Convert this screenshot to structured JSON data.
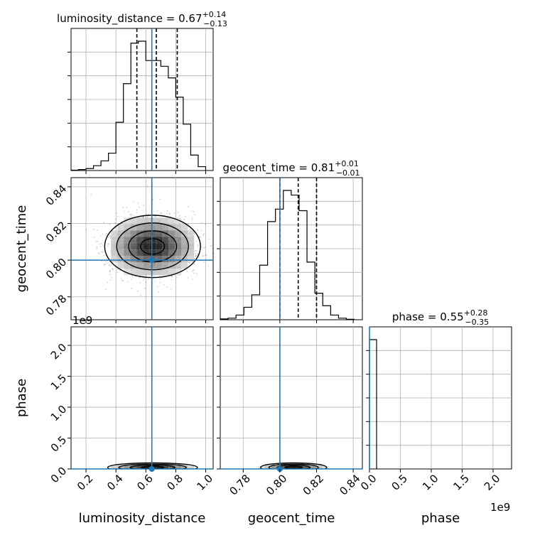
{
  "chart_data": {
    "type": "corner",
    "parameters": [
      "luminosity_distance",
      "geocent_time",
      "phase"
    ],
    "truth": {
      "luminosity_distance": 0.64,
      "geocent_time": 0.8,
      "phase": 0.0
    },
    "truth_color": "#1f77b4",
    "grid": true,
    "scale_offset_label": "1e9",
    "titles": [
      {
        "name": "luminosity_distance = 0.67",
        "sup": "+0.14",
        "sub": "−0.13"
      },
      {
        "name": "geocent_time = 0.81",
        "sup": "+0.01",
        "sub": "−0.01"
      },
      {
        "name": "phase = 0.55",
        "sup": "+0.28",
        "sub": "−0.35"
      }
    ],
    "axis_labels": {
      "x": [
        "luminosity_distance",
        "geocent_time",
        "phase"
      ],
      "y": [
        "geocent_time",
        "phase"
      ]
    },
    "ranges": {
      "luminosity_distance": [
        0.1,
        1.05
      ],
      "geocent_time": [
        0.7675,
        0.845
      ],
      "phase": [
        0.0,
        2.3
      ]
    },
    "ticks": {
      "luminosity_distance": [
        "0.2",
        "0.4",
        "0.6",
        "0.8",
        "1.0"
      ],
      "geocent_time": [
        "0.78",
        "0.80",
        "0.82",
        "0.84"
      ],
      "phase": [
        "0.0",
        "0.5",
        "1.0",
        "1.5",
        "2.0"
      ]
    },
    "marginals": {
      "luminosity_distance": {
        "bin_edges": [
          0.1,
          0.15,
          0.2,
          0.25,
          0.3,
          0.35,
          0.4,
          0.45,
          0.5,
          0.55,
          0.6,
          0.65,
          0.7,
          0.75,
          0.8,
          0.85,
          0.9,
          0.95,
          1.0
        ],
        "counts": [
          0.2,
          0.5,
          1,
          2.5,
          5,
          9,
          25,
          45,
          66,
          67,
          57,
          57,
          54,
          48,
          38,
          24,
          8,
          2
        ],
        "quantiles": [
          0.54,
          0.67,
          0.81
        ]
      },
      "geocent_time": {
        "bin_edges": [
          0.7675,
          0.7718,
          0.7761,
          0.7804,
          0.7847,
          0.789,
          0.7933,
          0.7976,
          0.8019,
          0.8062,
          0.8105,
          0.8148,
          0.8191,
          0.8234,
          0.8277,
          0.832,
          0.8363,
          0.8406
        ],
        "counts": [
          0.5,
          1,
          3,
          8,
          16,
          35,
          63,
          71,
          83,
          80,
          70,
          37,
          17,
          9,
          3,
          1,
          0.3
        ],
        "quantiles": [
          0.8,
          0.81,
          0.82
        ]
      },
      "phase": {
        "bin_edges": [
          0.0,
          0.115
        ],
        "counts": [
          1
        ],
        "quantiles": [
          0.2,
          0.55,
          0.83
        ]
      }
    },
    "density_2d": [
      {
        "x_param": "luminosity_distance",
        "y_param": "geocent_time",
        "center": [
          0.645,
          0.8075
        ],
        "spread": [
          0.16,
          0.0085
        ]
      },
      {
        "x_param": "luminosity_distance",
        "y_param": "phase",
        "center": [
          0.645,
          0.025
        ],
        "spread": [
          0.15,
          0.04
        ]
      },
      {
        "x_param": "geocent_time",
        "y_param": "phase",
        "center": [
          0.8075,
          0.025
        ],
        "spread": [
          0.009,
          0.04
        ]
      }
    ]
  }
}
